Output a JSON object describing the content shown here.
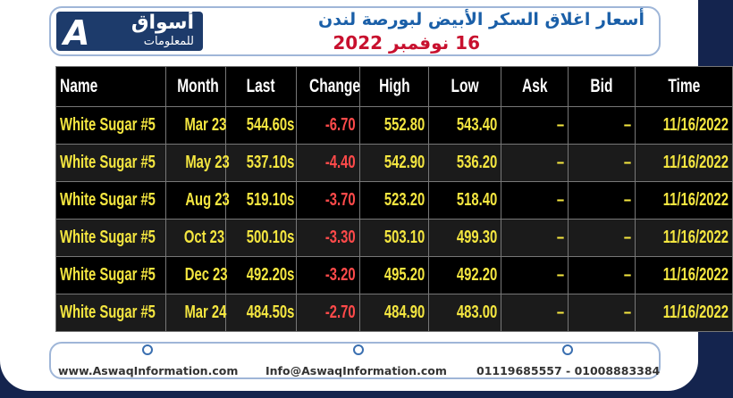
{
  "logo": {
    "name": "أسواق",
    "tagline": "للمعلومات"
  },
  "header": {
    "title": "أسعار اغلاق السكر الأبيض لبورصة لندن",
    "date": "16 نوفمبر 2022"
  },
  "table": {
    "columns": [
      "Name",
      "Month",
      "Last",
      "Change",
      "High",
      "Low",
      "Ask",
      "Bid",
      "Time"
    ],
    "rows": [
      [
        "White Sugar #5",
        "Mar 23",
        "544.60s",
        "-6.70",
        "552.80",
        "543.40",
        "–",
        "–",
        "11/16/2022"
      ],
      [
        "White Sugar #5",
        "May 23",
        "537.10s",
        "-4.40",
        "542.90",
        "536.20",
        "–",
        "–",
        "11/16/2022"
      ],
      [
        "White Sugar #5",
        "Aug 23",
        "519.10s",
        "-3.70",
        "523.20",
        "518.40",
        "–",
        "–",
        "11/16/2022"
      ],
      [
        "White Sugar #5",
        "Oct 23",
        "500.10s",
        "-3.30",
        "503.10",
        "499.30",
        "–",
        "–",
        "11/16/2022"
      ],
      [
        "White Sugar #5",
        "Dec 23",
        "492.20s",
        "-3.20",
        "495.20",
        "492.20",
        "–",
        "–",
        "11/16/2022"
      ],
      [
        "White Sugar #5",
        "Mar 24",
        "484.50s",
        "-2.70",
        "484.90",
        "483.00",
        "–",
        "–",
        "11/16/2022"
      ]
    ]
  },
  "footer": {
    "website": "www.AswaqInformation.com",
    "email": "Info@AswaqInformation.com",
    "phone": "01119685557 - 01008883384"
  }
}
